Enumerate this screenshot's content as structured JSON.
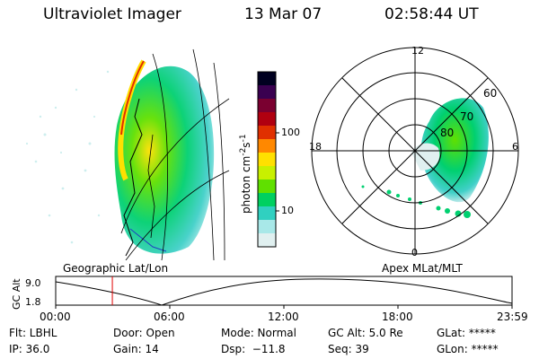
{
  "header": {
    "instrument": "Ultraviolet Imager",
    "date": "13 Mar 07",
    "time": "02:58:44 UT"
  },
  "colorbar": {
    "label": "photon cm",
    "label_sup1": "-2",
    "label_mid": "s",
    "label_sup2": "-1",
    "ticks": [
      "100",
      "10"
    ],
    "colors": [
      "#000020",
      "#3a0050",
      "#7a0030",
      "#b00010",
      "#e03000",
      "#ff8800",
      "#ffe000",
      "#c8f000",
      "#60e000",
      "#00d060",
      "#30d0c0",
      "#a8e8e8",
      "#e0f0f0"
    ]
  },
  "polar": {
    "mlt_labels": [
      "12",
      "18",
      "6",
      "0"
    ],
    "lat_labels": [
      "60",
      "70",
      "80"
    ]
  },
  "timeline": {
    "left_title": "Geographic Lat/Lon",
    "right_title": "Apex MLat/MLT",
    "ylabel": "GC Alt",
    "y_ticks": [
      "9.0",
      "1.8"
    ],
    "x_ticks": [
      "00:00",
      "06:00",
      "12:00",
      "18:00",
      "23:59"
    ],
    "current_time_hours": 2.979
  },
  "footer": {
    "filter": "Flt: LBHL",
    "ip": "IP: 36.0",
    "door": "Door: Open",
    "gain": "Gain: 14",
    "mode": "Mode: Normal",
    "dsp": "Dsp:  −11.8",
    "gc_alt": "GC Alt: 5.0 Re",
    "seq": "Seq: 39",
    "glat": "GLat: *****",
    "glon": "GLon: *****"
  }
}
